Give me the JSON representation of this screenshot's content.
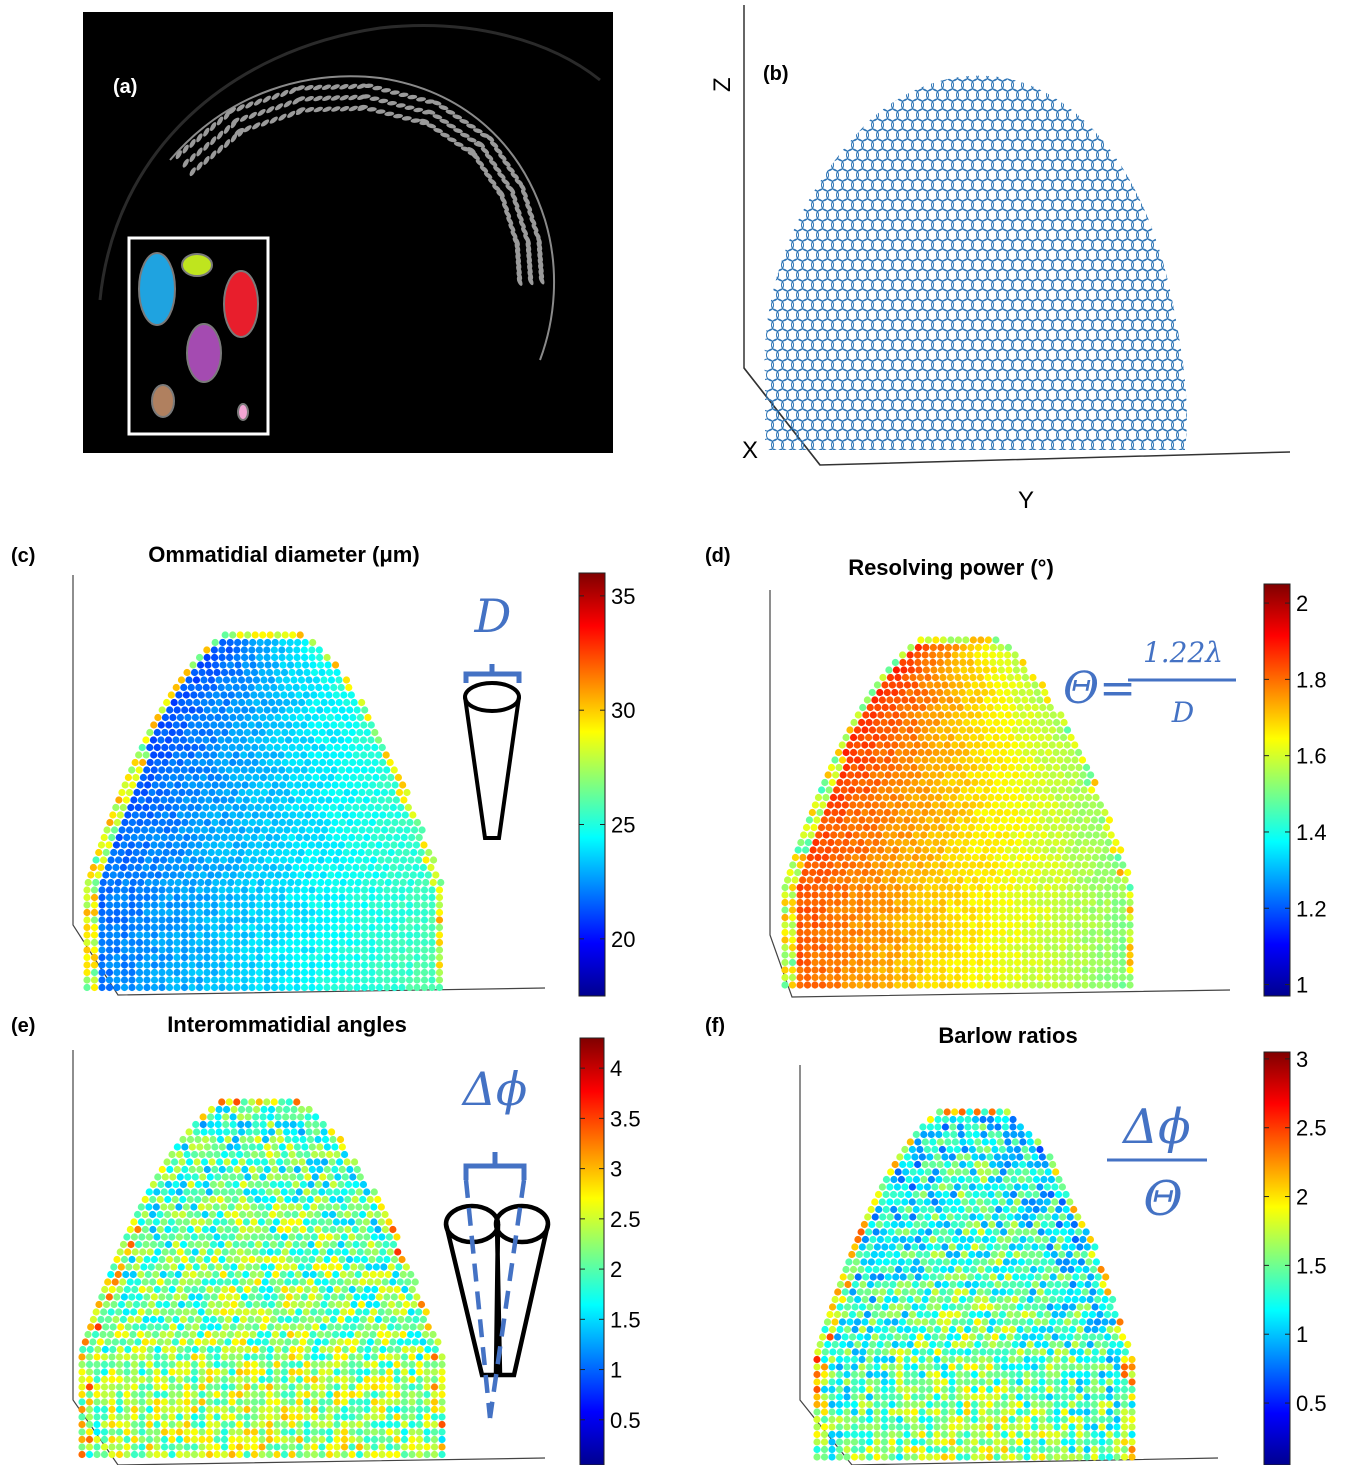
{
  "panels": {
    "a": {
      "label": "(a)"
    },
    "b": {
      "label": "(b)",
      "axes": {
        "z": "Z",
        "x": "X",
        "y": "Y"
      }
    },
    "c": {
      "label": "(c)",
      "title": "Ommatidial diameter (μm)",
      "symbol": "D",
      "colorbar": {
        "min": 17.5,
        "max": 36,
        "ticks": [
          "20",
          "25",
          "30",
          "35"
        ],
        "tick_values": [
          20,
          25,
          30,
          35
        ]
      }
    },
    "d": {
      "label": "(d)",
      "title": "Resolving power (°)",
      "formula_lhs": "Θ=",
      "formula_num": "1.22λ",
      "formula_den": "D",
      "colorbar": {
        "min": 0.97,
        "max": 2.05,
        "ticks": [
          "1",
          "1.2",
          "1.4",
          "1.6",
          "1.8",
          "2"
        ],
        "tick_values": [
          1,
          1.2,
          1.4,
          1.6,
          1.8,
          2
        ]
      }
    },
    "e": {
      "label": "(e)",
      "title": "Interommatidial angles",
      "symbol": "Δϕ",
      "colorbar": {
        "min": 0.05,
        "max": 4.3,
        "ticks": [
          "0.5",
          "1",
          "1.5",
          "2",
          "2.5",
          "3",
          "3.5",
          "4"
        ],
        "tick_values": [
          0.5,
          1,
          1.5,
          2,
          2.5,
          3,
          3.5,
          4
        ]
      }
    },
    "f": {
      "label": "(f)",
      "title": "Barlow ratios",
      "formula_num": "Δϕ",
      "formula_den": "Θ",
      "colorbar": {
        "min": 0.05,
        "max": 3.05,
        "ticks": [
          "0.5",
          "1",
          "1.5",
          "2",
          "2.5",
          "3"
        ],
        "tick_values": [
          0.5,
          1,
          1.5,
          2,
          2.5,
          3
        ]
      }
    }
  },
  "colors": {
    "symbol": "#4472C4",
    "wireframe": "#2E75B6",
    "inset_frame": "#ffffff"
  },
  "colormap": "jet"
}
